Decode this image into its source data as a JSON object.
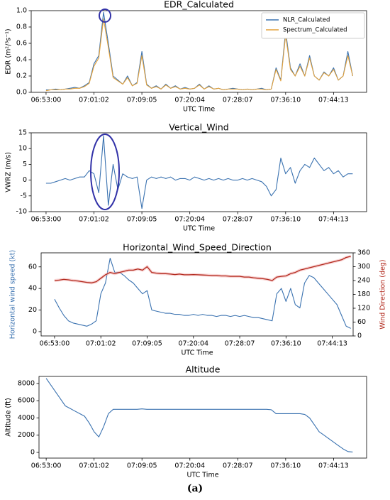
{
  "chart_data": [
    {
      "type": "line",
      "title": "EDR_Calculated",
      "xlabel": "UTC Time",
      "ylabel": "EDR (m²/³s⁻¹)",
      "legend": "upper right",
      "x": [
        0,
        1,
        2,
        3,
        4,
        5,
        6,
        7,
        8,
        9,
        10,
        11,
        12,
        13,
        14,
        15,
        16,
        17,
        18,
        19,
        20,
        21,
        22,
        23,
        24,
        25,
        26,
        27,
        28,
        29,
        30,
        31,
        32,
        33,
        34,
        35,
        36,
        37,
        38,
        39,
        40,
        41,
        42,
        43,
        44,
        45,
        46,
        47,
        48,
        49,
        50,
        51,
        52,
        53,
        54,
        55,
        56,
        57,
        58,
        59,
        60,
        61,
        62,
        63,
        64
      ],
      "xlim": [
        -3.1,
        66.9
      ],
      "xticks": [
        {
          "value": 0,
          "label": "06:53:00"
        },
        {
          "value": 10,
          "label": "07:01:02"
        },
        {
          "value": 20,
          "label": "07:09:05"
        },
        {
          "value": 30,
          "label": "07:20:04"
        },
        {
          "value": 40,
          "label": "07:28:07"
        },
        {
          "value": 50,
          "label": "07:36:10"
        },
        {
          "value": 60,
          "label": "07:44:13"
        }
      ],
      "ylim": [
        0,
        1
      ],
      "yticks": [
        {
          "value": 0,
          "label": "0.0"
        },
        {
          "value": 0.2,
          "label": "0.2"
        },
        {
          "value": 0.4,
          "label": "0.4"
        },
        {
          "value": 0.6,
          "label": "0.6"
        },
        {
          "value": 0.8,
          "label": "0.8"
        },
        {
          "value": 1,
          "label": "1.0"
        }
      ],
      "series": [
        {
          "name": "NLR_Calculated",
          "color": "#3a72b0",
          "values": [
            0.03,
            0.03,
            0.04,
            0.03,
            0.04,
            0.05,
            0.06,
            0.05,
            0.08,
            0.12,
            0.35,
            0.45,
            0.98,
            0.6,
            0.2,
            0.15,
            0.1,
            0.2,
            0.08,
            0.12,
            0.5,
            0.1,
            0.05,
            0.08,
            0.04,
            0.1,
            0.05,
            0.08,
            0.04,
            0.06,
            0.04,
            0.05,
            0.1,
            0.04,
            0.08,
            0.04,
            0.05,
            0.03,
            0.04,
            0.05,
            0.04,
            0.03,
            0.04,
            0.03,
            0.04,
            0.05,
            0.03,
            0.04,
            0.3,
            0.15,
            0.75,
            0.3,
            0.2,
            0.35,
            0.2,
            0.45,
            0.2,
            0.15,
            0.25,
            0.2,
            0.3,
            0.15,
            0.2,
            0.5,
            0.2
          ]
        },
        {
          "name": "Spectrum_Calculated",
          "color": "#e3a13a",
          "values": [
            0.02,
            0.03,
            0.03,
            0.03,
            0.04,
            0.04,
            0.05,
            0.05,
            0.07,
            0.11,
            0.32,
            0.42,
            0.9,
            0.55,
            0.18,
            0.14,
            0.1,
            0.18,
            0.08,
            0.11,
            0.45,
            0.09,
            0.05,
            0.07,
            0.04,
            0.09,
            0.05,
            0.07,
            0.04,
            0.05,
            0.04,
            0.05,
            0.09,
            0.04,
            0.07,
            0.04,
            0.05,
            0.03,
            0.04,
            0.04,
            0.04,
            0.03,
            0.04,
            0.03,
            0.04,
            0.04,
            0.03,
            0.04,
            0.28,
            0.14,
            0.7,
            0.28,
            0.2,
            0.32,
            0.2,
            0.42,
            0.2,
            0.15,
            0.24,
            0.2,
            0.28,
            0.15,
            0.2,
            0.45,
            0.2
          ]
        }
      ]
    },
    {
      "type": "line",
      "title": "Vertical_Wind",
      "xlabel": "UTC Time",
      "ylabel": "VWRZ (m/s)",
      "x": [
        0,
        1,
        2,
        3,
        4,
        5,
        6,
        7,
        8,
        9,
        10,
        11,
        12,
        13,
        14,
        15,
        16,
        17,
        18,
        19,
        20,
        21,
        22,
        23,
        24,
        25,
        26,
        27,
        28,
        29,
        30,
        31,
        32,
        33,
        34,
        35,
        36,
        37,
        38,
        39,
        40,
        41,
        42,
        43,
        44,
        45,
        46,
        47,
        48,
        49,
        50,
        51,
        52,
        53,
        54,
        55,
        56,
        57,
        58,
        59,
        60,
        61,
        62,
        63,
        64
      ],
      "xlim": [
        -3.1,
        66.9
      ],
      "xticks": [
        {
          "value": 0,
          "label": "06:53:00"
        },
        {
          "value": 10,
          "label": "07:01:02"
        },
        {
          "value": 20,
          "label": "07:09:05"
        },
        {
          "value": 30,
          "label": "07:20:04"
        },
        {
          "value": 40,
          "label": "07:28:07"
        },
        {
          "value": 50,
          "label": "07:36:10"
        },
        {
          "value": 60,
          "label": "07:44:13"
        }
      ],
      "ylim": [
        -10,
        15
      ],
      "yticks": [
        -10,
        -5,
        0,
        5,
        10,
        15
      ],
      "series": [
        {
          "name": "VWRZ",
          "color": "#3a72b0",
          "values": [
            -1,
            -1,
            -0.5,
            0,
            0.5,
            0,
            0.5,
            1,
            1,
            3,
            2,
            -4,
            14,
            -8,
            5,
            -3,
            2,
            1,
            0.5,
            1,
            -9,
            0,
            1,
            0.5,
            1,
            0.5,
            1,
            0,
            0.5,
            0.5,
            0,
            1,
            0.5,
            0,
            0.5,
            0,
            0.5,
            0,
            0.5,
            0,
            0,
            0.5,
            0,
            0.5,
            0,
            -0.5,
            -2,
            -5,
            -3,
            7,
            2,
            4,
            -1,
            3,
            5,
            4,
            7,
            5,
            3,
            4,
            2,
            3,
            1,
            2,
            2
          ]
        }
      ]
    },
    {
      "type": "line",
      "title": "Horizontal_Wind_Speed_Direction",
      "xlabel": "UTC Time",
      "ylabel": "Horizontal wind speed (kt)",
      "y2label": "Wind Direction (deg)",
      "x": [
        0,
        1,
        2,
        3,
        4,
        5,
        6,
        7,
        8,
        9,
        10,
        11,
        12,
        13,
        14,
        15,
        16,
        17,
        18,
        19,
        20,
        21,
        22,
        23,
        24,
        25,
        26,
        27,
        28,
        29,
        30,
        31,
        32,
        33,
        34,
        35,
        36,
        37,
        38,
        39,
        40,
        41,
        42,
        43,
        44,
        45,
        46,
        47,
        48,
        49,
        50,
        51,
        52,
        53,
        54,
        55,
        56,
        57,
        58,
        59,
        60,
        61,
        62,
        63,
        64
      ],
      "xlim": [
        -2.9,
        64.5
      ],
      "xticks": [
        {
          "value": 0,
          "label": "06:53:00"
        },
        {
          "value": 10,
          "label": "07:01:02"
        },
        {
          "value": 20,
          "label": "07:09:05"
        },
        {
          "value": 30,
          "label": "07:20:04"
        },
        {
          "value": 40,
          "label": "07:28:07"
        },
        {
          "value": 50,
          "label": "07:36:10"
        },
        {
          "value": 60,
          "label": "07:44:13"
        }
      ],
      "ylim": [
        -4,
        73
      ],
      "yticks": [
        0,
        20,
        40,
        60
      ],
      "y2lim": [
        0,
        360
      ],
      "y2ticks": [
        0,
        60,
        120,
        180,
        240,
        300,
        360
      ],
      "series": [
        {
          "name": "Horizontal wind speed",
          "color": "#3a72b0",
          "values": [
            30,
            22,
            15,
            10,
            8,
            7,
            6,
            5,
            7,
            10,
            35,
            45,
            68,
            55,
            55,
            52,
            48,
            45,
            40,
            35,
            38,
            20,
            19,
            18,
            17,
            17,
            16,
            16,
            15,
            15,
            16,
            15,
            16,
            15,
            15,
            14,
            15,
            15,
            14,
            15,
            14,
            15,
            14,
            13,
            13,
            12,
            11,
            10,
            35,
            40,
            28,
            40,
            25,
            22,
            45,
            52,
            50,
            45,
            40,
            35,
            30,
            25,
            15,
            5,
            3
          ]
        },
        {
          "name": "Wind Direction",
          "color": "#b22a1e",
          "axis": "y2",
          "values": [
            240,
            242,
            245,
            243,
            240,
            238,
            235,
            232,
            230,
            235,
            250,
            265,
            275,
            270,
            275,
            280,
            285,
            285,
            290,
            285,
            300,
            275,
            272,
            270,
            270,
            268,
            266,
            268,
            265,
            265,
            266,
            265,
            264,
            263,
            262,
            262,
            260,
            260,
            258,
            258,
            258,
            255,
            255,
            252,
            250,
            248,
            245,
            240,
            255,
            258,
            260,
            270,
            275,
            285,
            290,
            295,
            300,
            305,
            310,
            315,
            320,
            325,
            330,
            340,
            345
          ]
        }
      ]
    },
    {
      "type": "line",
      "title": "Altitude",
      "xlabel": "UTC Time",
      "ylabel": "Altitude (ft)",
      "x": [
        0,
        1,
        2,
        3,
        4,
        5,
        6,
        7,
        8,
        9,
        10,
        11,
        12,
        13,
        14,
        15,
        16,
        17,
        18,
        19,
        20,
        21,
        22,
        23,
        24,
        25,
        26,
        27,
        28,
        29,
        30,
        31,
        32,
        33,
        34,
        35,
        36,
        37,
        38,
        39,
        40,
        41,
        42,
        43,
        44,
        45,
        46,
        47,
        48,
        49,
        50,
        51,
        52,
        53,
        54,
        55,
        56,
        57,
        58,
        59,
        60,
        61,
        62,
        63,
        64
      ],
      "xlim": [
        -1.5,
        66.9
      ],
      "xticks": [
        {
          "value": 0,
          "label": "06:53:00"
        },
        {
          "value": 10,
          "label": "07:01:02"
        },
        {
          "value": 20,
          "label": "07:09:05"
        },
        {
          "value": 30,
          "label": "07:20:04"
        },
        {
          "value": 40,
          "label": "07:28:07"
        },
        {
          "value": 50,
          "label": "07:36:10"
        },
        {
          "value": 60,
          "label": "07:44:13"
        }
      ],
      "ylim": [
        -660,
        8820
      ],
      "yticks": [
        0,
        2000,
        4000,
        6000,
        8000
      ],
      "series": [
        {
          "name": "Altitude",
          "color": "#3a72b0",
          "values": [
            8600,
            7800,
            7000,
            6200,
            5400,
            5100,
            4800,
            4500,
            4200,
            3400,
            2400,
            1800,
            3000,
            4500,
            5000,
            5000,
            5000,
            5000,
            5000,
            5000,
            5050,
            5000,
            5000,
            5000,
            5000,
            5000,
            5000,
            5000,
            5000,
            5000,
            5000,
            5000,
            5000,
            5000,
            5000,
            5000,
            5000,
            5000,
            5000,
            5000,
            5000,
            5000,
            5000,
            5000,
            5000,
            5000,
            5000,
            4950,
            4500,
            4500,
            4500,
            4500,
            4500,
            4500,
            4400,
            4000,
            3200,
            2400,
            2000,
            1600,
            1200,
            800,
            400,
            100,
            50
          ]
        }
      ]
    }
  ],
  "caption": "(a)"
}
